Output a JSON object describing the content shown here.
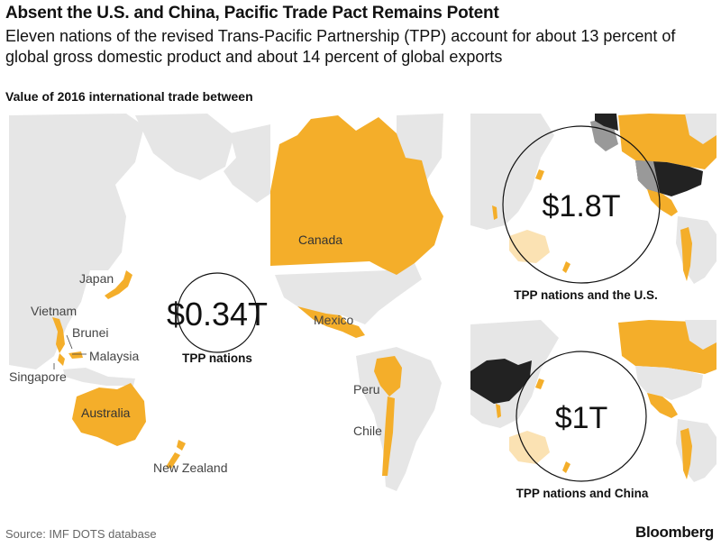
{
  "header": {
    "title": "Absent the U.S. and China, Pacific Trade Pact Remains Potent",
    "subtitle": "Eleven nations of the revised Trans-Pacific Partnership (TPP) account for about 13 percent of global gross domestic product and about 14 percent of global exports"
  },
  "section_label": "Value of 2016 international trade between",
  "main_map": {
    "country_labels": {
      "canada": "Canada",
      "japan": "Japan",
      "vietnam": "Vietnam",
      "brunei": "Brunei",
      "malaysia": "Malaysia",
      "singapore": "Singapore",
      "mexico": "Mexico",
      "australia": "Australia",
      "peru": "Peru",
      "chile": "Chile",
      "new_zealand": "New Zealand"
    },
    "value_label": "$0.34T",
    "caption": "TPP nations"
  },
  "inset_us": {
    "value_label": "$1.8T",
    "caption": "TPP nations and the U.S."
  },
  "inset_china": {
    "value_label": "$1T",
    "caption": "TPP nations and China"
  },
  "footer": {
    "source": "Source: IMF DOTS database",
    "brand": "Bloomberg"
  },
  "colors": {
    "tpp": "#f4ae2a",
    "tpp_light": "#fbe2b3",
    "land": "#e6e6e6",
    "highlight": "#222222",
    "overlap_gray": "#999999",
    "background": "#ffffff"
  }
}
